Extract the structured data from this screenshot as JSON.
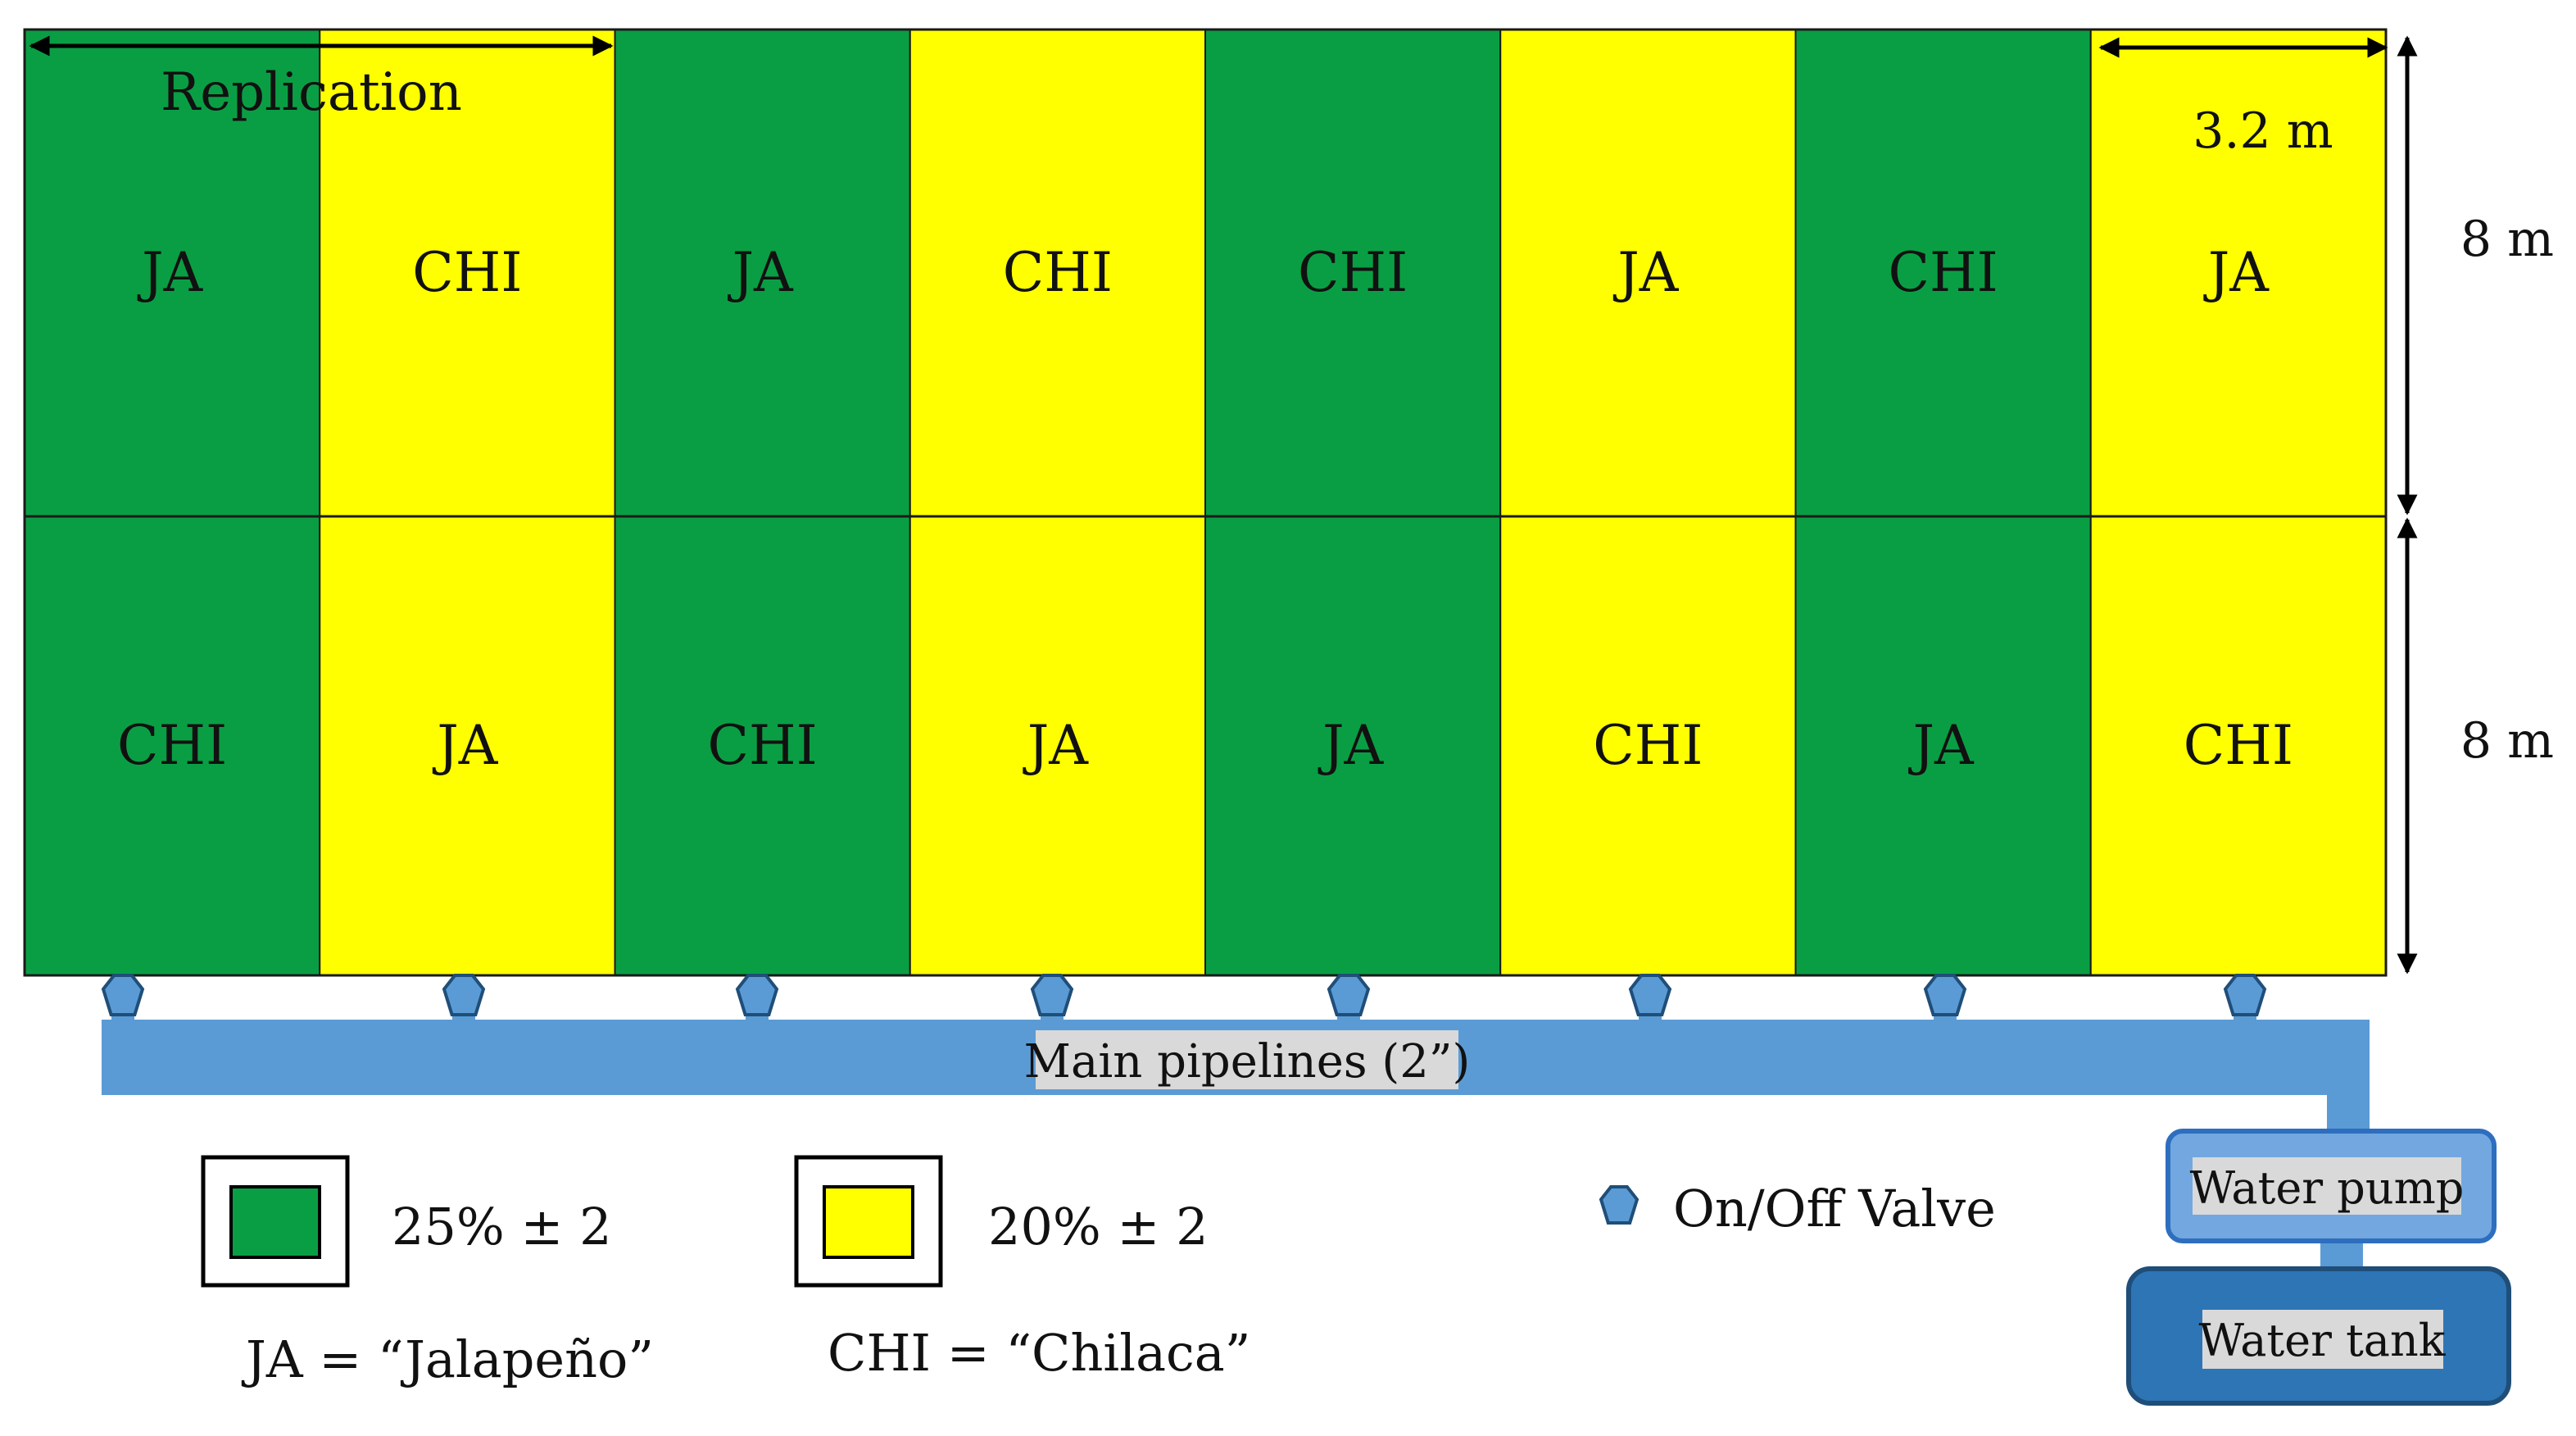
{
  "colors": {
    "green": "#0a9e44",
    "yellow": "#ffff00",
    "pipe": "#5b9bd5",
    "pump_fill": "#72a8df",
    "pump_stroke": "#2e6ebf",
    "tank_fill": "#2e75b6",
    "tank_stroke": "#1f4e79",
    "label_bg": "#d9d9d9",
    "valve_fill": "#5b9bd5",
    "valve_stroke": "#1f4e79"
  },
  "field": {
    "rows": [
      [
        {
          "label": "JA",
          "color": "green"
        },
        {
          "label": "CHI",
          "color": "yellow"
        },
        {
          "label": "JA",
          "color": "green"
        },
        {
          "label": "CHI",
          "color": "yellow"
        },
        {
          "label": "CHI",
          "color": "green"
        },
        {
          "label": "JA",
          "color": "yellow"
        },
        {
          "label": "CHI",
          "color": "green"
        },
        {
          "label": "JA",
          "color": "yellow"
        }
      ],
      [
        {
          "label": "CHI",
          "color": "green"
        },
        {
          "label": "JA",
          "color": "yellow"
        },
        {
          "label": "CHI",
          "color": "green"
        },
        {
          "label": "JA",
          "color": "yellow"
        },
        {
          "label": "JA",
          "color": "green"
        },
        {
          "label": "CHI",
          "color": "yellow"
        },
        {
          "label": "JA",
          "color": "green"
        },
        {
          "label": "CHI",
          "color": "yellow"
        }
      ]
    ]
  },
  "dimensions": {
    "replication_label": "Replication",
    "width_label": "3.2 m",
    "row1_height_label": "8 m",
    "row2_height_label": "8 m"
  },
  "pipeline": {
    "label": "Main pipelines (2”)",
    "valve_count": 8
  },
  "devices": {
    "pump_label": "Water pump",
    "tank_label": "Water tank"
  },
  "legend": {
    "green_value": "25% ± 2",
    "yellow_value": "20% ± 2",
    "valve_label": "On/Off Valve",
    "ja_definition": "JA = “Jalapeño”",
    "chi_definition": "CHI = “Chilaca”"
  }
}
